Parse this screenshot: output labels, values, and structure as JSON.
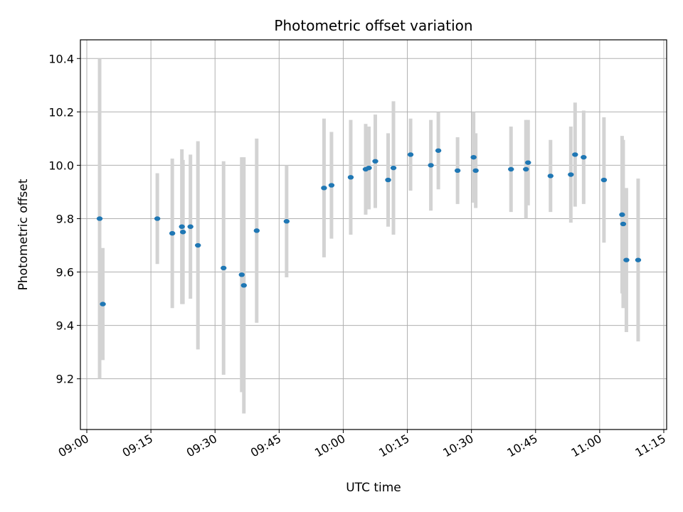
{
  "chart_data": {
    "type": "scatter",
    "title": "Photometric offset variation",
    "xlabel": "UTC time",
    "ylabel": "Photometric offset",
    "xlim": [
      "08:58:30",
      "11:15:40"
    ],
    "ylim": [
      9.01,
      10.47
    ],
    "x_ticks": [
      "09:00",
      "09:15",
      "09:30",
      "09:45",
      "10:00",
      "10:15",
      "10:30",
      "10:45",
      "11:00",
      "11:15"
    ],
    "y_ticks": [
      9.2,
      9.4,
      9.6,
      9.8,
      10.0,
      10.2,
      10.4
    ],
    "grid": true,
    "colors": {
      "point": "#1f77b4",
      "errorbar": "#d3d3d3",
      "grid": "#b0b0b0"
    },
    "points": [
      {
        "x": "09:03:00",
        "y": 9.8,
        "err": 0.6
      },
      {
        "x": "09:03:45",
        "y": 9.48,
        "err": 0.21
      },
      {
        "x": "09:16:30",
        "y": 9.8,
        "err": 0.17
      },
      {
        "x": "09:20:00",
        "y": 9.745,
        "err": 0.28
      },
      {
        "x": "09:22:15",
        "y": 9.77,
        "err": 0.29
      },
      {
        "x": "09:22:30",
        "y": 9.75,
        "err": 0.27
      },
      {
        "x": "09:24:15",
        "y": 9.77,
        "err": 0.27
      },
      {
        "x": "09:26:00",
        "y": 9.7,
        "err": 0.39
      },
      {
        "x": "09:32:00",
        "y": 9.615,
        "err": 0.4
      },
      {
        "x": "09:36:15",
        "y": 9.59,
        "err": 0.44
      },
      {
        "x": "09:36:45",
        "y": 9.55,
        "err": 0.48
      },
      {
        "x": "09:39:45",
        "y": 9.755,
        "err": 0.345
      },
      {
        "x": "09:46:45",
        "y": 9.79,
        "err": 0.21
      },
      {
        "x": "09:55:30",
        "y": 9.915,
        "err": 0.26
      },
      {
        "x": "09:57:15",
        "y": 9.925,
        "err": 0.2
      },
      {
        "x": "10:01:45",
        "y": 9.955,
        "err": 0.215
      },
      {
        "x": "10:05:15",
        "y": 9.985,
        "err": 0.17
      },
      {
        "x": "10:06:00",
        "y": 9.99,
        "err": 0.155
      },
      {
        "x": "10:07:30",
        "y": 10.015,
        "err": 0.175
      },
      {
        "x": "10:10:30",
        "y": 9.945,
        "err": 0.175
      },
      {
        "x": "10:11:45",
        "y": 9.99,
        "err": 0.25
      },
      {
        "x": "10:15:45",
        "y": 10.04,
        "err": 0.135
      },
      {
        "x": "10:20:30",
        "y": 10.0,
        "err": 0.17
      },
      {
        "x": "10:22:15",
        "y": 10.055,
        "err": 0.145
      },
      {
        "x": "10:26:45",
        "y": 9.98,
        "err": 0.125
      },
      {
        "x": "10:30:30",
        "y": 10.03,
        "err": 0.17
      },
      {
        "x": "10:31:00",
        "y": 9.98,
        "err": 0.14
      },
      {
        "x": "10:39:15",
        "y": 9.985,
        "err": 0.16
      },
      {
        "x": "10:42:45",
        "y": 9.985,
        "err": 0.185
      },
      {
        "x": "10:43:15",
        "y": 10.01,
        "err": 0.16
      },
      {
        "x": "10:48:30",
        "y": 9.96,
        "err": 0.135
      },
      {
        "x": "10:53:15",
        "y": 9.965,
        "err": 0.18
      },
      {
        "x": "10:54:15",
        "y": 10.04,
        "err": 0.195
      },
      {
        "x": "10:56:15",
        "y": 10.03,
        "err": 0.175
      },
      {
        "x": "11:01:00",
        "y": 9.945,
        "err": 0.235
      },
      {
        "x": "11:05:15",
        "y": 9.815,
        "err": 0.295
      },
      {
        "x": "11:05:30",
        "y": 9.78,
        "err": 0.315
      },
      {
        "x": "11:06:15",
        "y": 9.645,
        "err": 0.27
      },
      {
        "x": "11:09:00",
        "y": 9.645,
        "err": 0.305
      }
    ]
  }
}
